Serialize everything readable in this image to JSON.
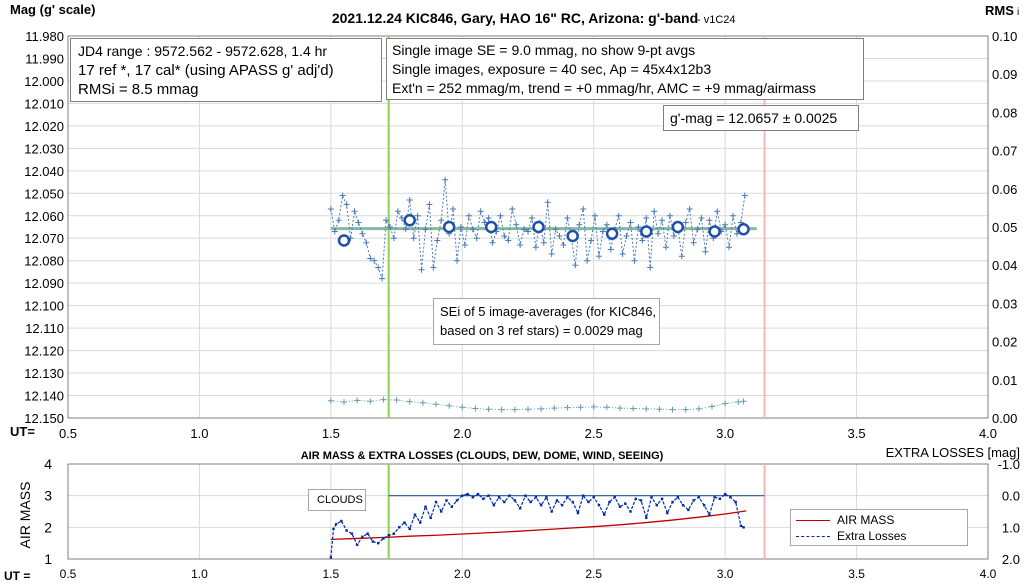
{
  "chart_data": [
    {
      "type": "scatter",
      "title": "2021.12.24 KIC846, Gary, HAO 16\" RC, Arizona: g'-band",
      "title_suffix": "- v1C24",
      "ylabel": "Mag (g' scale)",
      "ylabel_right": "RMS",
      "ylabel_right_suffix": "i",
      "xlabel": "UT=",
      "xlim": [
        0.5,
        4.0
      ],
      "ylim": [
        11.98,
        12.15
      ],
      "y_inverted": true,
      "ylim_right": [
        0.0,
        0.1
      ],
      "x_ticks": [
        "0.5",
        "1.0",
        "1.5",
        "2.0",
        "2.5",
        "3.0",
        "3.5",
        "4.0"
      ],
      "y_ticks": [
        "11.980",
        "11.990",
        "12.000",
        "12.010",
        "12.020",
        "12.030",
        "12.040",
        "12.050",
        "12.060",
        "12.070",
        "12.080",
        "12.090",
        "12.100",
        "12.110",
        "12.120",
        "12.130",
        "12.140",
        "12.150"
      ],
      "y_ticks_right": [
        "0.10",
        "0.09",
        "0.08",
        "0.07",
        "0.06",
        "0.05",
        "0.04",
        "0.03",
        "0.02",
        "0.01",
        "0.00"
      ],
      "grid": true,
      "vlines": [
        {
          "x": 1.72,
          "color": "#92d050"
        },
        {
          "x": 3.15,
          "color": "#f4b6b6"
        }
      ],
      "hline": {
        "y": 12.0657,
        "x_range": [
          1.5,
          3.08
        ],
        "color": "#70ad8f"
      },
      "annotations": [
        [
          "JD4 range : 9572.562 - 9572.628,  1.4  hr",
          "17 ref *, 17 cal* (using APASS g' adj'd)",
          "RMSi = 8.5 mmag"
        ],
        [
          "Single image SE = 9.0 mmag, no show  9-pt avgs",
          "Single images, exposure = 40 sec, Ap = 45x4x12b3",
          "Ext'n = 252 mmag/m, trend = +0 mmag/hr, AMC = +9 mmag/airmass"
        ],
        [
          "g'-mag = 12.0657 ± 0.0025"
        ],
        [
          "SEi of 5 image-averages (for KIC846,",
          "based on 3 ref stars) = 0.0029 mag"
        ]
      ],
      "series": [
        {
          "role": "single images",
          "color": "#4a7ab5",
          "x": [
            1.5,
            1.515,
            1.53,
            1.545,
            1.56,
            1.575,
            1.59,
            1.605,
            1.62,
            1.635,
            1.65,
            1.665,
            1.68,
            1.695,
            1.71,
            1.725,
            1.74,
            1.755,
            1.77,
            1.785,
            1.8,
            1.815,
            1.83,
            1.845,
            1.86,
            1.875,
            1.89,
            1.905,
            1.92,
            1.935,
            1.95,
            1.965,
            1.98,
            1.995,
            2.01,
            2.025,
            2.04,
            2.055,
            2.07,
            2.085,
            2.1,
            2.115,
            2.13,
            2.145,
            2.16,
            2.175,
            2.19,
            2.205,
            2.22,
            2.235,
            2.25,
            2.265,
            2.28,
            2.295,
            2.31,
            2.325,
            2.34,
            2.355,
            2.37,
            2.385,
            2.4,
            2.415,
            2.43,
            2.445,
            2.46,
            2.475,
            2.49,
            2.505,
            2.52,
            2.535,
            2.55,
            2.565,
            2.58,
            2.595,
            2.61,
            2.625,
            2.64,
            2.655,
            2.67,
            2.685,
            2.7,
            2.715,
            2.73,
            2.745,
            2.76,
            2.775,
            2.79,
            2.805,
            2.82,
            2.835,
            2.85,
            2.865,
            2.88,
            2.895,
            2.91,
            2.925,
            2.94,
            2.955,
            2.97,
            2.985,
            3.0,
            3.015,
            3.03,
            3.045,
            3.06,
            3.075
          ],
          "y": [
            12.057,
            12.067,
            12.062,
            12.051,
            12.055,
            12.07,
            12.058,
            12.063,
            12.068,
            12.072,
            12.079,
            12.08,
            12.083,
            12.088,
            12.062,
            12.065,
            12.07,
            12.058,
            12.061,
            12.066,
            12.053,
            12.07,
            12.06,
            12.084,
            12.066,
            12.055,
            12.083,
            12.071,
            12.062,
            12.044,
            12.068,
            12.057,
            12.08,
            12.065,
            12.073,
            12.06,
            12.066,
            12.07,
            12.058,
            12.063,
            12.061,
            12.072,
            12.067,
            12.06,
            12.069,
            12.071,
            12.057,
            12.064,
            12.073,
            12.066,
            12.067,
            12.061,
            12.074,
            12.063,
            12.072,
            12.054,
            12.077,
            12.066,
            12.069,
            12.073,
            12.061,
            12.07,
            12.082,
            12.064,
            12.057,
            12.08,
            12.071,
            12.06,
            12.078,
            12.067,
            12.064,
            12.075,
            12.066,
            12.06,
            12.077,
            12.069,
            12.063,
            12.08,
            12.065,
            12.071,
            12.061,
            12.083,
            12.058,
            12.068,
            12.062,
            12.074,
            12.06,
            12.069,
            12.065,
            12.078,
            12.063,
            12.057,
            12.072,
            12.066,
            12.061,
            12.076,
            12.062,
            12.07,
            12.058,
            12.067,
            12.064,
            12.074,
            12.06,
            12.068,
            12.063,
            12.051
          ]
        },
        {
          "role": "5-image averages",
          "color": "#1f4fa8",
          "x": [
            1.55,
            1.8,
            1.95,
            2.11,
            2.29,
            2.42,
            2.57,
            2.7,
            2.82,
            2.96,
            3.07
          ],
          "y": [
            12.071,
            12.062,
            12.065,
            12.065,
            12.065,
            12.069,
            12.068,
            12.067,
            12.065,
            12.067,
            12.066
          ]
        },
        {
          "role": "RMSi",
          "axis": "right",
          "color": "#6a9bb0",
          "x": [
            1.5,
            1.55,
            1.6,
            1.65,
            1.7,
            1.75,
            1.8,
            1.85,
            1.9,
            1.95,
            2.0,
            2.05,
            2.1,
            2.15,
            2.2,
            2.25,
            2.3,
            2.35,
            2.4,
            2.45,
            2.5,
            2.55,
            2.6,
            2.65,
            2.7,
            2.75,
            2.8,
            2.85,
            2.9,
            2.95,
            3.0,
            3.05,
            3.07
          ],
          "y": [
            0.0045,
            0.0042,
            0.0046,
            0.0044,
            0.0048,
            0.0047,
            0.0043,
            0.004,
            0.0036,
            0.0032,
            0.0028,
            0.0025,
            0.0023,
            0.0022,
            0.0022,
            0.0023,
            0.0024,
            0.0026,
            0.0027,
            0.0028,
            0.0029,
            0.0028,
            0.0026,
            0.0025,
            0.0024,
            0.0023,
            0.0022,
            0.0022,
            0.0024,
            0.003,
            0.0038,
            0.0042,
            0.0044
          ]
        }
      ]
    },
    {
      "type": "line",
      "title": "AIR MASS & EXTRA LOSSES (CLOUDS, DEW, DOME, WIND, SEEING)",
      "ylabel": "AIR MASS",
      "ylabel_right": "EXTRA LOSSES [mag]",
      "xlabel": "UT =",
      "xlim": [
        0.5,
        4.0
      ],
      "ylim": [
        1,
        4
      ],
      "ylim_right": [
        -1.0,
        2.0
      ],
      "y_right_inverted": true,
      "x_ticks": [
        "0.5",
        "1.0",
        "1.5",
        "2.0",
        "2.5",
        "3.0",
        "3.5",
        "4.0"
      ],
      "y_ticks": [
        "1",
        "2",
        "3",
        "4"
      ],
      "y_ticks_right": [
        "-1.0",
        "0.0",
        "1.0",
        "2.0"
      ],
      "grid": true,
      "vlines": [
        {
          "x": 1.72,
          "color": "#92d050"
        },
        {
          "x": 3.15,
          "color": "#f4b6b6"
        }
      ],
      "hline": {
        "y": 0.0,
        "axis": "right",
        "x_range": [
          1.72,
          3.15
        ],
        "color": "#2f5597"
      },
      "annotation": "CLOUDS",
      "legend": {
        "position": "bottom-right",
        "entries": [
          "AIR MASS",
          "Extra Losses"
        ]
      },
      "series": [
        {
          "name": "AIR MASS",
          "color": "#c00000",
          "x": [
            1.5,
            1.6,
            1.7,
            1.8,
            1.9,
            2.0,
            2.1,
            2.2,
            2.3,
            2.4,
            2.5,
            2.6,
            2.7,
            2.8,
            2.9,
            3.0,
            3.08
          ],
          "y": [
            1.62,
            1.65,
            1.68,
            1.72,
            1.75,
            1.79,
            1.83,
            1.87,
            1.92,
            1.97,
            2.02,
            2.08,
            2.15,
            2.23,
            2.32,
            2.42,
            2.52
          ]
        },
        {
          "name": "Extra Losses",
          "axis": "right",
          "color": "#002aa8",
          "x": [
            1.5,
            1.51,
            1.52,
            1.54,
            1.56,
            1.58,
            1.6,
            1.62,
            1.64,
            1.66,
            1.68,
            1.7,
            1.72,
            1.74,
            1.76,
            1.78,
            1.8,
            1.82,
            1.84,
            1.86,
            1.88,
            1.9,
            1.92,
            1.94,
            1.96,
            1.98,
            2.0,
            2.02,
            2.04,
            2.06,
            2.08,
            2.1,
            2.12,
            2.14,
            2.16,
            2.18,
            2.2,
            2.22,
            2.24,
            2.26,
            2.28,
            2.3,
            2.32,
            2.34,
            2.36,
            2.38,
            2.4,
            2.42,
            2.44,
            2.46,
            2.48,
            2.5,
            2.52,
            2.54,
            2.56,
            2.58,
            2.6,
            2.62,
            2.64,
            2.66,
            2.68,
            2.7,
            2.72,
            2.74,
            2.76,
            2.78,
            2.8,
            2.82,
            2.84,
            2.86,
            2.88,
            2.9,
            2.92,
            2.94,
            2.96,
            2.98,
            3.0,
            3.02,
            3.04,
            3.06,
            3.07
          ],
          "y": [
            1.95,
            1.05,
            0.9,
            0.8,
            1.1,
            1.2,
            1.55,
            1.3,
            1.2,
            1.45,
            1.5,
            1.35,
            1.25,
            1.2,
            1.0,
            0.85,
            1.05,
            0.6,
            0.85,
            0.35,
            0.7,
            0.2,
            0.5,
            0.15,
            0.35,
            0.15,
            0.0,
            -0.05,
            0.05,
            -0.05,
            0.1,
            0.0,
            0.3,
            0.05,
            0.2,
            0.0,
            0.15,
            0.4,
            0.0,
            0.2,
            0.05,
            0.3,
            0.05,
            0.5,
            0.15,
            0.3,
            0.05,
            0.2,
            0.55,
            0.0,
            0.2,
            0.05,
            0.3,
            0.6,
            0.2,
            0.05,
            0.35,
            0.25,
            0.5,
            0.1,
            0.15,
            0.7,
            0.05,
            0.3,
            0.1,
            0.55,
            0.2,
            0.05,
            0.3,
            0.45,
            0.15,
            0.05,
            0.3,
            0.6,
            0.05,
            0.1,
            -0.05,
            0.05,
            0.2,
            0.95,
            1.0
          ]
        }
      ]
    }
  ]
}
